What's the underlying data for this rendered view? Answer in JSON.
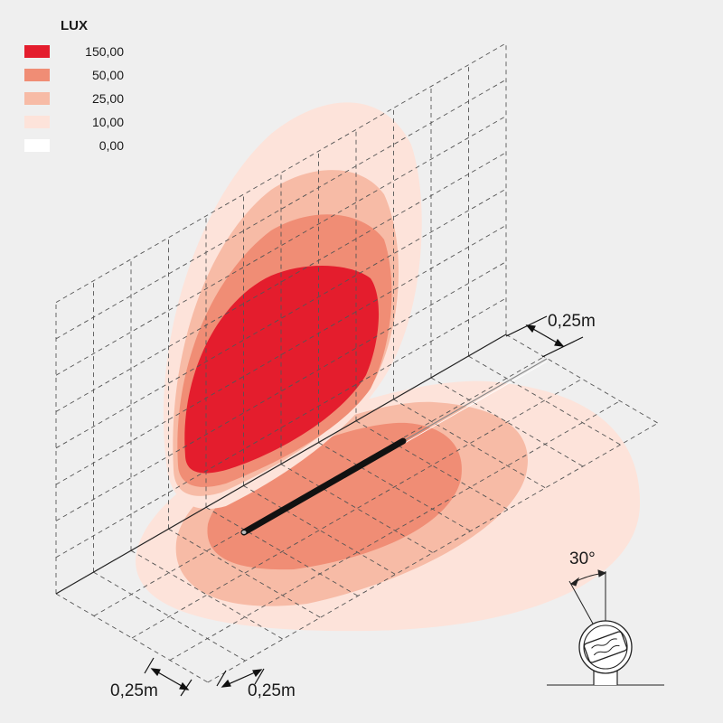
{
  "legend": {
    "title": "LUX",
    "items": [
      {
        "value": "150,00",
        "color": "#e41d2d"
      },
      {
        "value": "50,00",
        "color": "#f08d75"
      },
      {
        "value": "25,00",
        "color": "#f7bba6"
      },
      {
        "value": "10,00",
        "color": "#fde3da"
      },
      {
        "value": "0,00",
        "color": "#ffffff"
      }
    ]
  },
  "dimensions": {
    "grid_right": "0,25m",
    "grid_bottom_left": "0,25m",
    "grid_bottom_right": "0,25m",
    "tilt_angle": "30°"
  }
}
